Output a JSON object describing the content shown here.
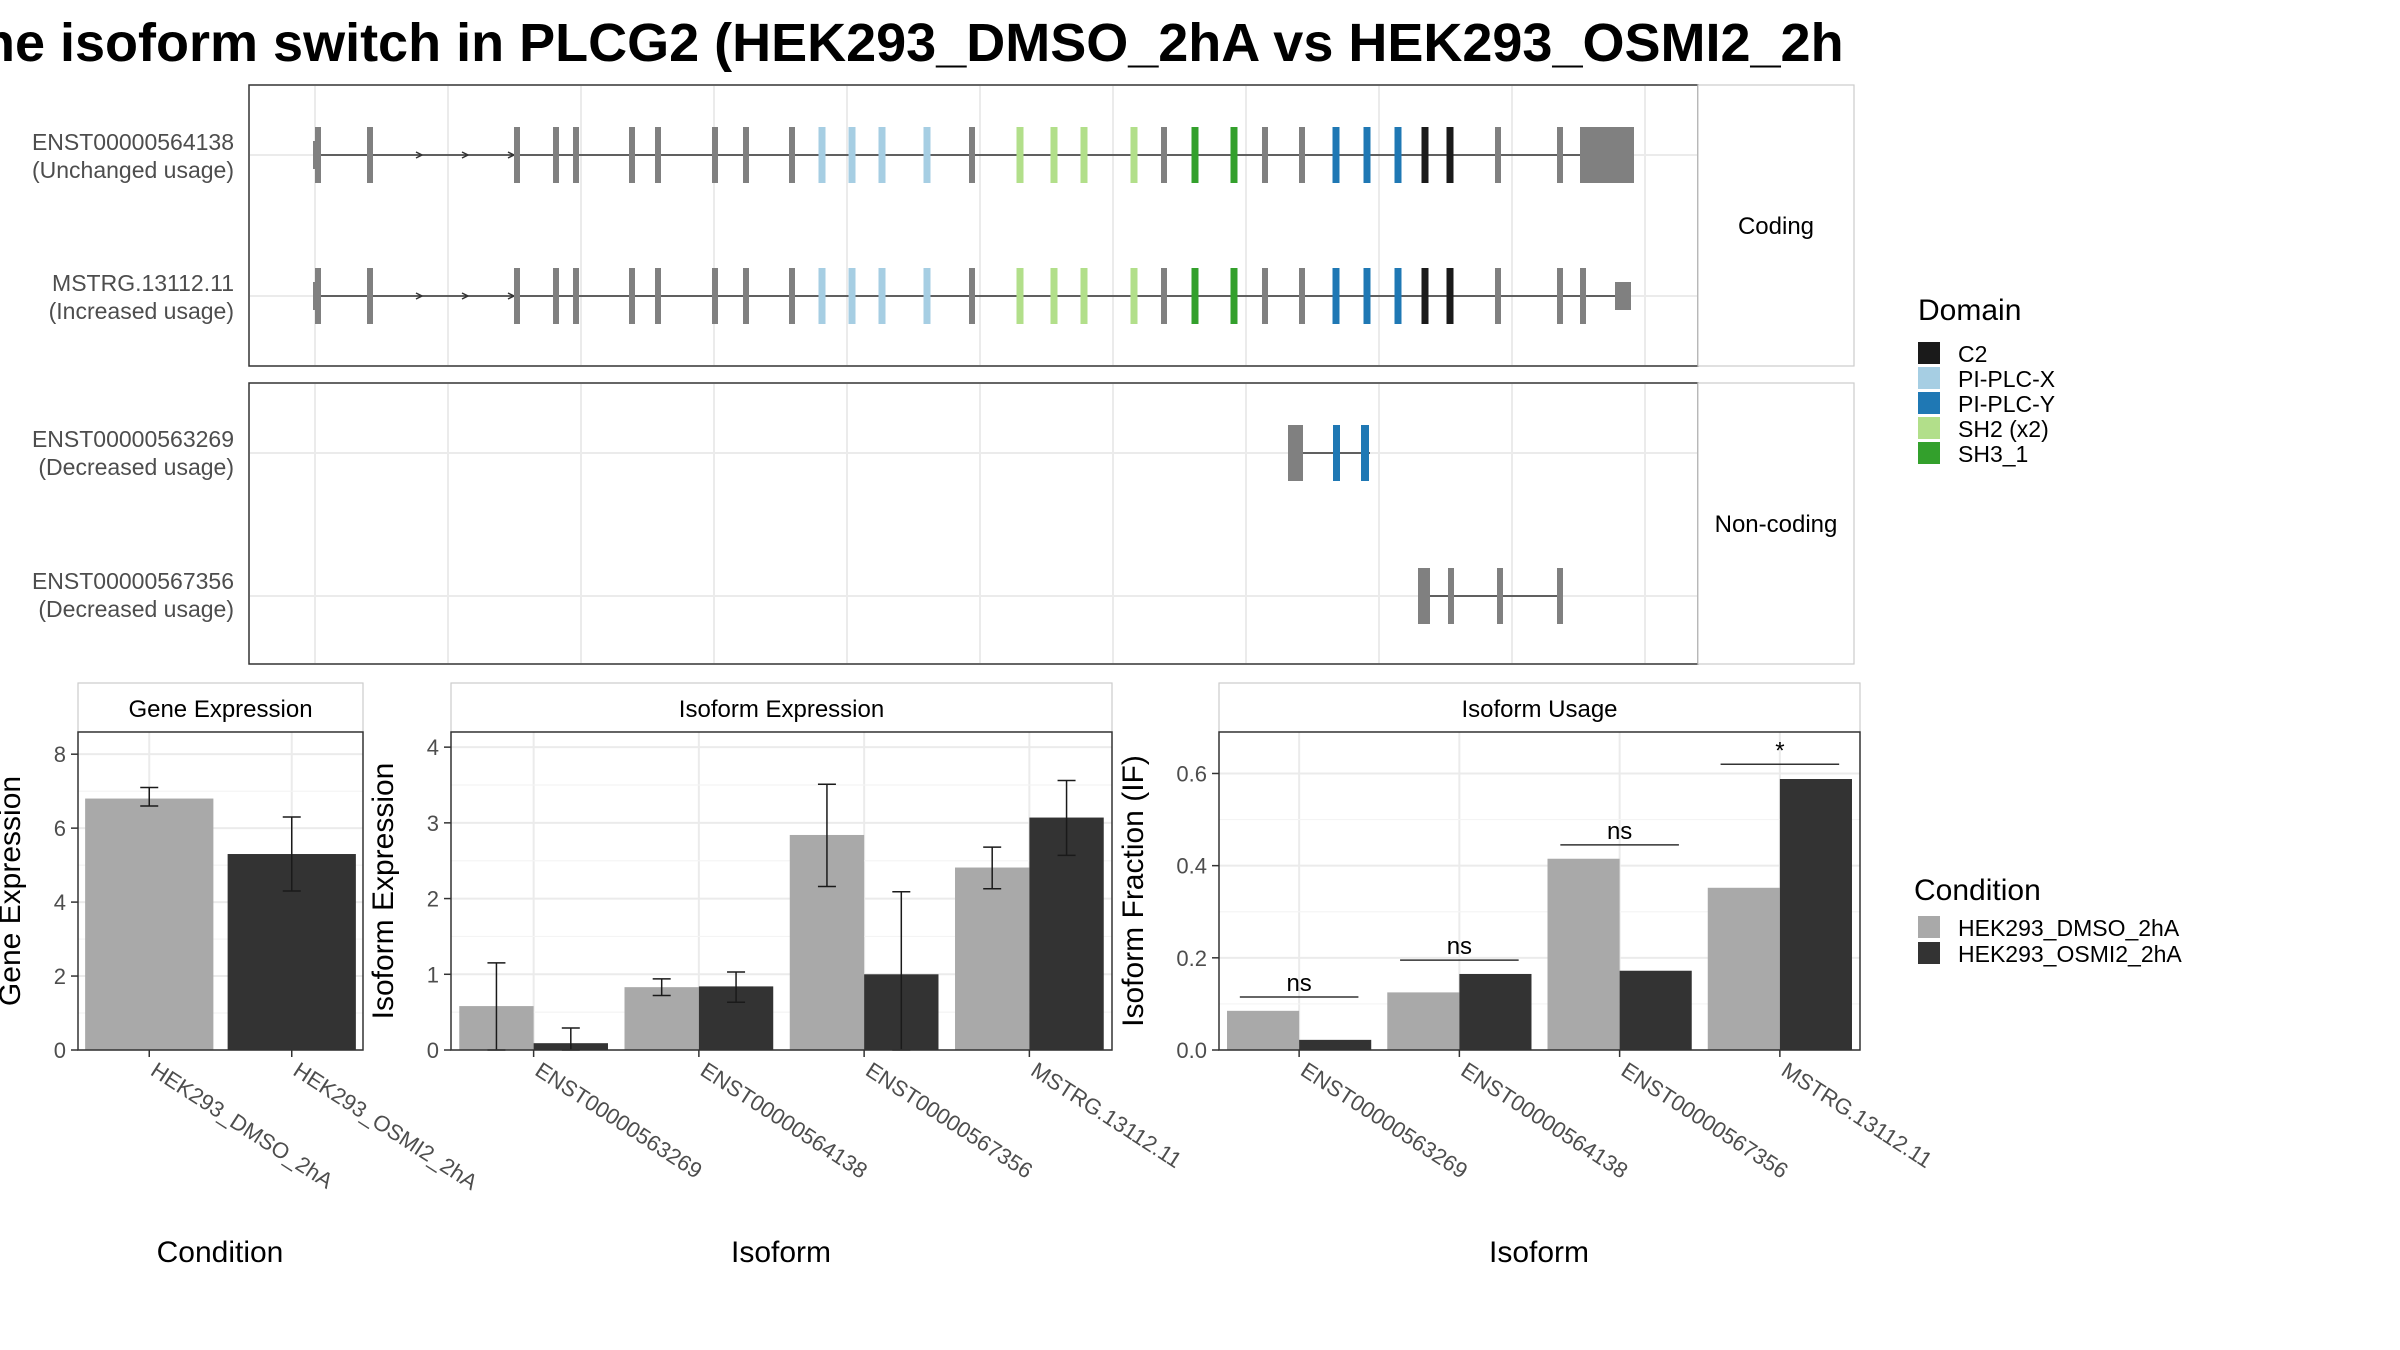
{
  "title": "he isoform switch in PLCG2 (HEK293_DMSO_2hA vs HEK293_OSMI2_2h",
  "colors": {
    "exon": "#808080",
    "C2": "#1a1a1a",
    "PI-PLC-X": "#a6cee3",
    "PI-PLC-Y": "#1f78b4",
    "SH2 (x2)": "#b2df8a",
    "SH3_1": "#33a02c",
    "HEK293_DMSO_2hA": "#a9a9a9",
    "HEK293_OSMI2_2hA": "#333333",
    "grid": "#ebebeb"
  },
  "transcripts": {
    "facets": [
      {
        "strip": "Coding",
        "rows": [
          {
            "id": "ENST00000564138",
            "note": "(Unchanged usage)",
            "gene_model": "full_a"
          },
          {
            "id": "MSTRG.13112.11",
            "note": "(Increased usage)",
            "gene_model": "full_b"
          }
        ]
      },
      {
        "strip": "Non-coding",
        "rows": [
          {
            "id": "ENST00000563269",
            "note": "(Decreased usage)",
            "gene_model": "short_y"
          },
          {
            "id": "ENST00000567356",
            "note": "(Decreased usage)",
            "gene_model": "short_c"
          }
        ]
      }
    ],
    "legend": {
      "title": "Domain",
      "items": [
        "C2",
        "PI-PLC-X",
        "PI-PLC-Y",
        "SH2 (x2)",
        "SH3_1"
      ]
    }
  },
  "chart_data": [
    {
      "type": "bar",
      "strip": "Gene Expression",
      "xlabel": "Condition",
      "ylabel": "Gene Expression",
      "categories": [
        "HEK293_DMSO_2hA",
        "HEK293_OSMI2_2hA"
      ],
      "values": [
        6.8,
        5.3
      ],
      "err_low": [
        6.6,
        4.3
      ],
      "err_high": [
        7.1,
        6.3
      ],
      "ylim": [
        0,
        8.6
      ],
      "yticks": [
        0,
        2,
        4,
        6,
        8
      ]
    },
    {
      "type": "bar",
      "strip": "Isoform Expression",
      "xlabel": "Isoform",
      "ylabel": "Isoform Expression",
      "categories": [
        "ENST00000563269",
        "ENST00000564138",
        "ENST00000567356",
        "MSTRG.13112.11"
      ],
      "series": [
        {
          "name": "HEK293_DMSO_2hA",
          "values": [
            0.58,
            0.83,
            2.84,
            2.41
          ],
          "err_low": [
            0.0,
            0.72,
            2.16,
            2.13
          ],
          "err_high": [
            1.15,
            0.94,
            3.51,
            2.68
          ]
        },
        {
          "name": "HEK293_OSMI2_2hA",
          "values": [
            0.09,
            0.84,
            1.0,
            3.07
          ],
          "err_low": [
            0.0,
            0.63,
            0.0,
            2.57
          ],
          "err_high": [
            0.29,
            1.03,
            2.09,
            3.56
          ]
        }
      ],
      "ylim": [
        0,
        4.2
      ],
      "yticks": [
        0,
        1,
        2,
        3,
        4
      ]
    },
    {
      "type": "bar",
      "strip": "Isoform Usage",
      "xlabel": "Isoform",
      "ylabel": "Isoform Fraction (IF)",
      "categories": [
        "ENST00000563269",
        "ENST00000564138",
        "ENST00000567356",
        "MSTRG.13112.11"
      ],
      "series": [
        {
          "name": "HEK293_DMSO_2hA",
          "values": [
            0.085,
            0.125,
            0.415,
            0.352
          ]
        },
        {
          "name": "HEK293_OSMI2_2hA",
          "values": [
            0.022,
            0.165,
            0.172,
            0.588
          ]
        }
      ],
      "significance": [
        "ns",
        "ns",
        "ns",
        "*"
      ],
      "sig_y": [
        0.115,
        0.195,
        0.445,
        0.62
      ],
      "ylim": [
        0,
        0.69
      ],
      "yticks": [
        0.0,
        0.2,
        0.4,
        0.6
      ],
      "ytick_labels": [
        "0.0",
        "0.2",
        "0.4",
        "0.6"
      ]
    }
  ],
  "condition_legend": {
    "title": "Condition",
    "items": [
      "HEK293_DMSO_2hA",
      "HEK293_OSMI2_2hA"
    ]
  }
}
